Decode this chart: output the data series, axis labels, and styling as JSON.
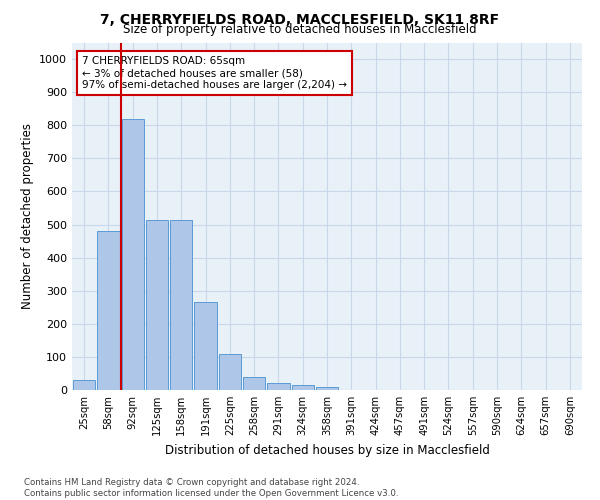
{
  "title_line1": "7, CHERRYFIELDS ROAD, MACCLESFIELD, SK11 8RF",
  "title_line2": "Size of property relative to detached houses in Macclesfield",
  "xlabel": "Distribution of detached houses by size in Macclesfield",
  "ylabel": "Number of detached properties",
  "footer_line1": "Contains HM Land Registry data © Crown copyright and database right 2024.",
  "footer_line2": "Contains public sector information licensed under the Open Government Licence v3.0.",
  "bar_labels": [
    "25sqm",
    "58sqm",
    "92sqm",
    "125sqm",
    "158sqm",
    "191sqm",
    "225sqm",
    "258sqm",
    "291sqm",
    "324sqm",
    "358sqm",
    "391sqm",
    "424sqm",
    "457sqm",
    "491sqm",
    "524sqm",
    "557sqm",
    "590sqm",
    "624sqm",
    "657sqm",
    "690sqm"
  ],
  "bar_values": [
    30,
    480,
    820,
    515,
    515,
    265,
    110,
    40,
    22,
    15,
    10,
    0,
    0,
    0,
    0,
    0,
    0,
    0,
    0,
    0,
    0
  ],
  "bar_color": "#aec6e8",
  "bar_edge_color": "#5b9bd5",
  "ylim": [
    0,
    1050
  ],
  "yticks": [
    0,
    100,
    200,
    300,
    400,
    500,
    600,
    700,
    800,
    900,
    1000
  ],
  "property_line_x": 1.5,
  "property_line_color": "#cc0000",
  "annotation_text": "7 CHERRYFIELDS ROAD: 65sqm\n← 3% of detached houses are smaller (58)\n97% of semi-detached houses are larger (2,204) →",
  "annotation_box_color": "#cc0000",
  "background_color": "#ffffff",
  "grid_color": "#c8d8e8",
  "ax_bg_color": "#e8f0f8"
}
